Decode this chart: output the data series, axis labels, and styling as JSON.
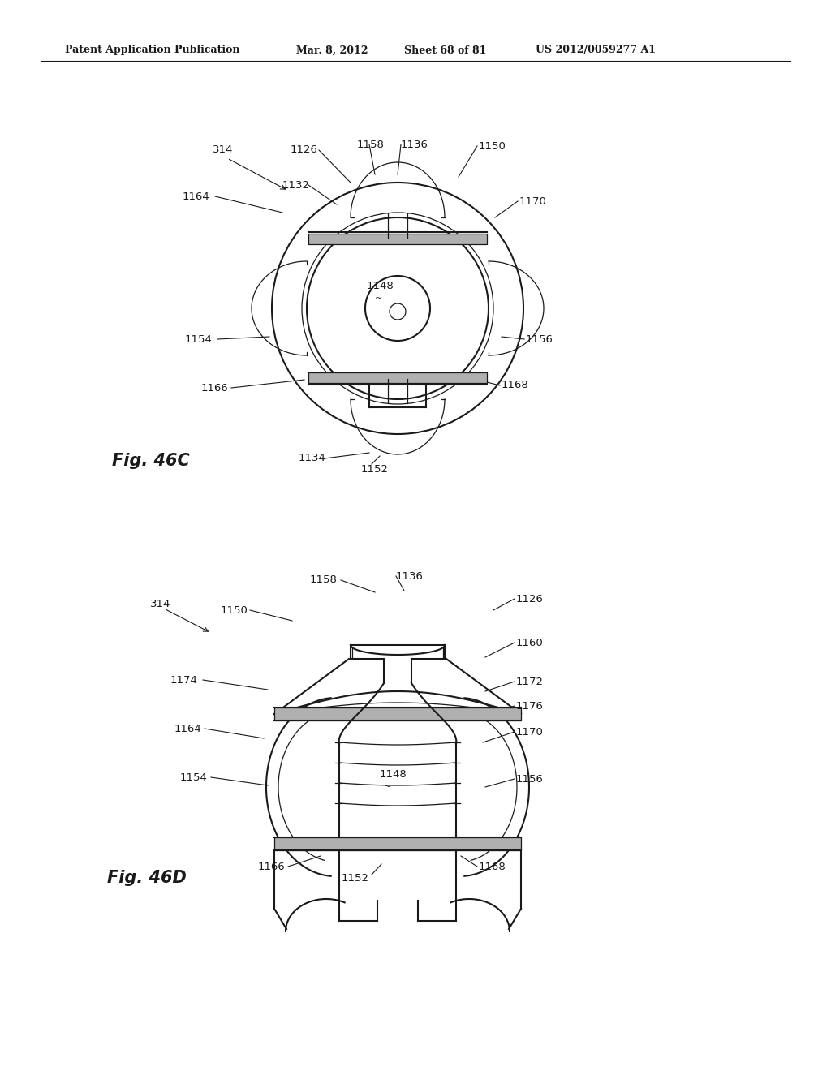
{
  "bg_color": "#ffffff",
  "line_color": "#1a1a1a",
  "gray_fill": "#b0b0b0",
  "header_text": "Patent Application Publication",
  "header_date": "Mar. 8, 2012",
  "header_sheet": "Sheet 68 of 81",
  "header_patent": "US 2012/0059277 A1",
  "fig_label_C": "Fig. 46C",
  "fig_label_D": "Fig. 46D"
}
